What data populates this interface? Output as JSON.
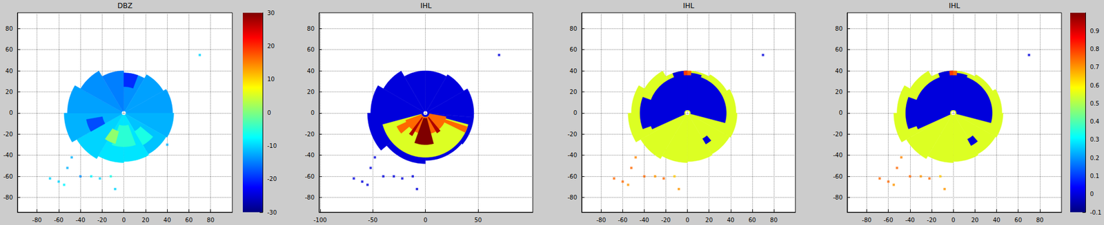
{
  "chart_data": [
    {
      "type": "ppi",
      "title": "DBZ",
      "grid": true,
      "xlim": [
        -98,
        100
      ],
      "xticks": [
        -80,
        -60,
        -40,
        -20,
        0,
        20,
        40,
        60,
        80
      ],
      "ylim": [
        -94,
        95
      ],
      "yticks": [
        -80,
        -60,
        -40,
        -20,
        0,
        20,
        40,
        60,
        80
      ],
      "color_range": [
        -30,
        30
      ],
      "color_ticks": [
        -30,
        -20,
        -10,
        0,
        10,
        20,
        30
      ],
      "sectors": [
        {
          "az": [
            0,
            30
          ],
          "r": [
            2,
            38
          ],
          "v": -14
        },
        {
          "az": [
            30,
            60
          ],
          "r": [
            2,
            42
          ],
          "v": -13
        },
        {
          "az": [
            60,
            90
          ],
          "r": [
            2,
            45
          ],
          "v": -13
        },
        {
          "az": [
            90,
            120
          ],
          "r": [
            2,
            46
          ],
          "v": -12
        },
        {
          "az": [
            120,
            150
          ],
          "r": [
            2,
            45
          ],
          "v": -11
        },
        {
          "az": [
            150,
            180
          ],
          "r": [
            2,
            46
          ],
          "v": -9
        },
        {
          "az": [
            180,
            210
          ],
          "r": [
            2,
            47
          ],
          "v": -9
        },
        {
          "az": [
            210,
            240
          ],
          "r": [
            2,
            50
          ],
          "v": -10
        },
        {
          "az": [
            240,
            270
          ],
          "r": [
            2,
            55
          ],
          "v": -12
        },
        {
          "az": [
            270,
            300
          ],
          "r": [
            2,
            52
          ],
          "v": -13
        },
        {
          "az": [
            300,
            330
          ],
          "r": [
            2,
            46
          ],
          "v": -14
        },
        {
          "az": [
            330,
            360
          ],
          "r": [
            2,
            40
          ],
          "v": -15
        },
        {
          "az": [
            160,
            200
          ],
          "r": [
            12,
            32
          ],
          "v": -5
        },
        {
          "az": [
            195,
            215
          ],
          "r": [
            18,
            30
          ],
          "v": 1
        },
        {
          "az": [
            130,
            150
          ],
          "r": [
            20,
            35
          ],
          "v": -6
        },
        {
          "az": [
            240,
            260
          ],
          "r": [
            20,
            35
          ],
          "v": -18
        },
        {
          "az": [
            0,
            20
          ],
          "r": [
            25,
            38
          ],
          "v": -20
        }
      ],
      "points": [
        [
          -60,
          -65,
          -10
        ],
        [
          -55,
          -68,
          -8
        ],
        [
          -48,
          -42,
          -12
        ],
        [
          -40,
          -60,
          -14
        ],
        [
          -30,
          -60,
          -8
        ],
        [
          -22,
          -62,
          -10
        ],
        [
          -12,
          -60,
          -6
        ],
        [
          -8,
          -72,
          -10
        ],
        [
          -52,
          -52,
          -12
        ],
        [
          40,
          -30,
          -12
        ],
        [
          70,
          55,
          -10
        ],
        [
          -68,
          -62,
          -10
        ]
      ]
    },
    {
      "type": "ppi",
      "title": "IHL",
      "grid": true,
      "xlim": [
        -101,
        102
      ],
      "xticks": [
        -100,
        -50,
        0,
        50
      ],
      "ylim": [
        -94,
        95
      ],
      "yticks": [
        -80,
        -60,
        -40,
        -20,
        0,
        20,
        40,
        60,
        80
      ],
      "color_range": [
        -0.1,
        1
      ],
      "sectors": [
        {
          "az": [
            0,
            30
          ],
          "r": [
            2,
            40
          ],
          "v": 0
        },
        {
          "az": [
            30,
            60
          ],
          "r": [
            2,
            42
          ],
          "v": 0
        },
        {
          "az": [
            60,
            95
          ],
          "r": [
            2,
            46
          ],
          "v": 0
        },
        {
          "az": [
            95,
            130
          ],
          "r": [
            2,
            46
          ],
          "v": 0
        },
        {
          "az": [
            130,
            180
          ],
          "r": [
            2,
            45
          ],
          "v": 0
        },
        {
          "az": [
            180,
            230
          ],
          "r": [
            2,
            48
          ],
          "v": 0
        },
        {
          "az": [
            230,
            270
          ],
          "r": [
            2,
            55
          ],
          "v": 0
        },
        {
          "az": [
            270,
            300
          ],
          "r": [
            2,
            52
          ],
          "v": 0
        },
        {
          "az": [
            300,
            330
          ],
          "r": [
            2,
            46
          ],
          "v": 0
        },
        {
          "az": [
            330,
            360
          ],
          "r": [
            2,
            40
          ],
          "v": 0
        },
        {
          "az": [
            105,
            255
          ],
          "r": [
            4,
            42
          ],
          "v": 0.55
        },
        {
          "az": [
            100,
            250
          ],
          "r": [
            4,
            20
          ],
          "v": 0.75
        },
        {
          "az": [
            108,
            116
          ],
          "r": [
            4,
            42
          ],
          "v": 0.75
        },
        {
          "az": [
            230,
            245
          ],
          "r": [
            15,
            30
          ],
          "v": 0.75
        },
        {
          "az": [
            165,
            200
          ],
          "r": [
            5,
            30
          ],
          "v": 1
        },
        {
          "az": [
            140,
            150
          ],
          "r": [
            5,
            22
          ],
          "v": 0.95
        },
        {
          "az": [
            210,
            218
          ],
          "r": [
            5,
            25
          ],
          "v": 0.95
        }
      ],
      "points": [
        [
          -60,
          -65,
          0
        ],
        [
          -55,
          -68,
          0
        ],
        [
          -48,
          -42,
          0
        ],
        [
          -40,
          -60,
          0
        ],
        [
          -30,
          -60,
          0
        ],
        [
          -22,
          -62,
          0
        ],
        [
          -12,
          -60,
          0
        ],
        [
          -8,
          -72,
          0
        ],
        [
          -52,
          -52,
          0
        ],
        [
          70,
          55,
          0
        ],
        [
          -68,
          -62,
          0
        ]
      ]
    },
    {
      "type": "ppi",
      "title": "IHL",
      "grid": true,
      "xlim": [
        -98,
        100
      ],
      "xticks": [
        -80,
        -60,
        -40,
        -20,
        0,
        20,
        40,
        60,
        80
      ],
      "ylim": [
        -94,
        95
      ],
      "yticks": [
        -80,
        -60,
        -40,
        -20,
        0,
        20,
        40,
        60,
        80
      ],
      "color_range": [
        -0.1,
        1
      ],
      "sectors": [
        {
          "az": [
            0,
            30
          ],
          "r": [
            2,
            40
          ],
          "v": 0.55
        },
        {
          "az": [
            30,
            60
          ],
          "r": [
            2,
            42
          ],
          "v": 0.55
        },
        {
          "az": [
            60,
            90
          ],
          "r": [
            2,
            45
          ],
          "v": 0.55
        },
        {
          "az": [
            90,
            120
          ],
          "r": [
            2,
            46
          ],
          "v": 0.55
        },
        {
          "az": [
            120,
            150
          ],
          "r": [
            2,
            45
          ],
          "v": 0.55
        },
        {
          "az": [
            150,
            180
          ],
          "r": [
            2,
            46
          ],
          "v": 0.55
        },
        {
          "az": [
            180,
            210
          ],
          "r": [
            2,
            47
          ],
          "v": 0.55
        },
        {
          "az": [
            210,
            240
          ],
          "r": [
            2,
            50
          ],
          "v": 0.55
        },
        {
          "az": [
            240,
            270
          ],
          "r": [
            2,
            55
          ],
          "v": 0.55
        },
        {
          "az": [
            270,
            300
          ],
          "r": [
            2,
            52
          ],
          "v": 0.55
        },
        {
          "az": [
            300,
            330
          ],
          "r": [
            2,
            46
          ],
          "v": 0.55
        },
        {
          "az": [
            330,
            360
          ],
          "r": [
            2,
            40
          ],
          "v": 0.55
        },
        {
          "az": [
            245,
            360
          ],
          "r": [
            3,
            36
          ],
          "v": 0
        },
        {
          "az": [
            0,
            105
          ],
          "r": [
            3,
            36
          ],
          "v": 0
        },
        {
          "az": [
            340,
            360
          ],
          "r": [
            3,
            40
          ],
          "v": 0
        },
        {
          "az": [
            0,
            20
          ],
          "r": [
            3,
            38
          ],
          "v": 0
        },
        {
          "az": [
            250,
            290
          ],
          "r": [
            30,
            44
          ],
          "v": 0
        },
        {
          "az": [
            140,
            150
          ],
          "r": [
            28,
            34
          ],
          "v": 0
        },
        {
          "az": [
            355,
            360
          ],
          "r": [
            36,
            40
          ],
          "v": 0.8
        },
        {
          "az": [
            0,
            5
          ],
          "r": [
            36,
            40
          ],
          "v": 0.75
        }
      ],
      "points": [
        [
          -60,
          -65,
          0.75
        ],
        [
          -55,
          -68,
          0.7
        ],
        [
          -48,
          -42,
          0.72
        ],
        [
          -40,
          -60,
          0.75
        ],
        [
          -30,
          -60,
          0.7
        ],
        [
          -22,
          -62,
          0.75
        ],
        [
          -12,
          -60,
          0.65
        ],
        [
          -8,
          -72,
          0.7
        ],
        [
          -52,
          -52,
          0.75
        ],
        [
          70,
          55,
          0
        ],
        [
          -68,
          -62,
          0.75
        ]
      ]
    },
    {
      "type": "ppi",
      "title": "IHL",
      "grid": true,
      "xlim": [
        -98,
        100
      ],
      "xticks": [
        -80,
        -60,
        -40,
        -20,
        0,
        20,
        40,
        60,
        80
      ],
      "ylim": [
        -94,
        95
      ],
      "yticks": [
        -80,
        -60,
        -40,
        -20,
        0,
        20,
        40,
        60,
        80
      ],
      "color_range": [
        -0.1,
        1
      ],
      "color_ticks": [
        -0.1,
        0,
        0.1,
        0.2,
        0.3,
        0.4,
        0.5,
        0.6,
        0.7,
        0.8,
        0.9
      ],
      "sectors": [
        {
          "az": [
            0,
            30
          ],
          "r": [
            2,
            40
          ],
          "v": 0.55
        },
        {
          "az": [
            30,
            60
          ],
          "r": [
            2,
            42
          ],
          "v": 0.55
        },
        {
          "az": [
            60,
            90
          ],
          "r": [
            2,
            45
          ],
          "v": 0.55
        },
        {
          "az": [
            90,
            120
          ],
          "r": [
            2,
            46
          ],
          "v": 0.55
        },
        {
          "az": [
            120,
            150
          ],
          "r": [
            2,
            45
          ],
          "v": 0.55
        },
        {
          "az": [
            150,
            180
          ],
          "r": [
            2,
            46
          ],
          "v": 0.55
        },
        {
          "az": [
            180,
            210
          ],
          "r": [
            2,
            47
          ],
          "v": 0.55
        },
        {
          "az": [
            210,
            240
          ],
          "r": [
            2,
            50
          ],
          "v": 0.55
        },
        {
          "az": [
            240,
            270
          ],
          "r": [
            2,
            55
          ],
          "v": 0.55
        },
        {
          "az": [
            270,
            300
          ],
          "r": [
            2,
            52
          ],
          "v": 0.55
        },
        {
          "az": [
            300,
            330
          ],
          "r": [
            2,
            46
          ],
          "v": 0.55
        },
        {
          "az": [
            330,
            360
          ],
          "r": [
            2,
            40
          ],
          "v": 0.55
        },
        {
          "az": [
            245,
            360
          ],
          "r": [
            3,
            36
          ],
          "v": 0
        },
        {
          "az": [
            0,
            105
          ],
          "r": [
            3,
            36
          ],
          "v": 0
        },
        {
          "az": [
            340,
            360
          ],
          "r": [
            3,
            40
          ],
          "v": 0
        },
        {
          "az": [
            0,
            20
          ],
          "r": [
            3,
            38
          ],
          "v": 0
        },
        {
          "az": [
            250,
            290
          ],
          "r": [
            30,
            44
          ],
          "v": 0
        },
        {
          "az": [
            140,
            152
          ],
          "r": [
            28,
            35
          ],
          "v": 0
        },
        {
          "az": [
            355,
            360
          ],
          "r": [
            36,
            40
          ],
          "v": 0.8
        },
        {
          "az": [
            0,
            5
          ],
          "r": [
            36,
            40
          ],
          "v": 0.75
        }
      ],
      "points": [
        [
          -60,
          -65,
          0.75
        ],
        [
          -55,
          -68,
          0.7
        ],
        [
          -48,
          -42,
          0.72
        ],
        [
          -40,
          -60,
          0.75
        ],
        [
          -30,
          -60,
          0.7
        ],
        [
          -22,
          -62,
          0.75
        ],
        [
          -12,
          -60,
          0.65
        ],
        [
          -8,
          -72,
          0.7
        ],
        [
          -52,
          -52,
          0.75
        ],
        [
          70,
          55,
          0
        ],
        [
          -68,
          -62,
          0.75
        ]
      ]
    }
  ]
}
